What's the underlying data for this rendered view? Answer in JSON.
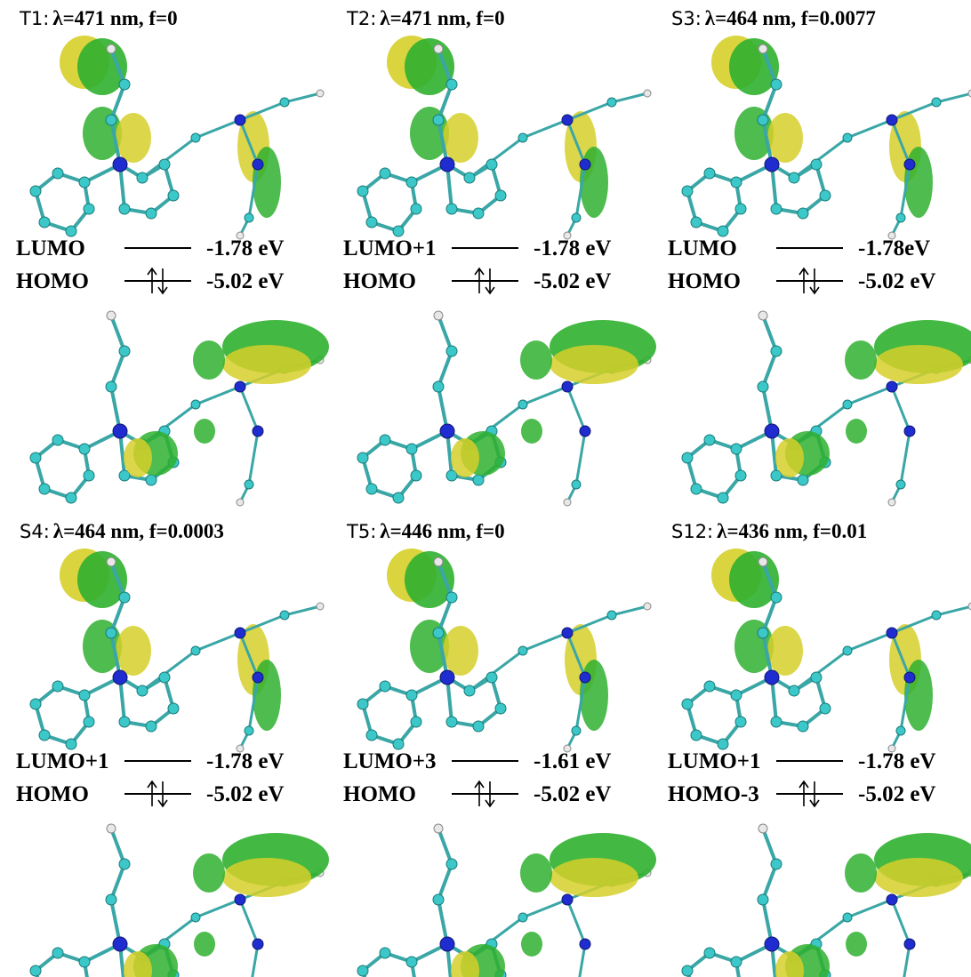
{
  "panels": [
    {
      "state": "T1:",
      "title": "λ=471 nm, f=0",
      "upper": {
        "orbital": "LUMO",
        "energy": "-1.78 eV"
      },
      "lower": {
        "orbital": "HOMO",
        "energy": "-5.02 eV"
      }
    },
    {
      "state": "T2:",
      "title": "λ=471 nm, f=0",
      "upper": {
        "orbital": "LUMO+1",
        "energy": "-1.78 eV"
      },
      "lower": {
        "orbital": "HOMO",
        "energy": "-5.02  eV"
      }
    },
    {
      "state": "S3:",
      "title": "λ=464 nm, f=0.0077",
      "upper": {
        "orbital": "LUMO",
        "energy": "-1.78eV"
      },
      "lower": {
        "orbital": "HOMO",
        "energy": "-5.02  eV"
      }
    },
    {
      "state": "S4:",
      "title": "λ=464 nm, f=0.0003",
      "upper": {
        "orbital": "LUMO+1",
        "energy": "-1.78 eV"
      },
      "lower": {
        "orbital": "HOMO",
        "energy": "-5.02  eV"
      }
    },
    {
      "state": "T5:",
      "title": "λ=446 nm, f=0",
      "upper": {
        "orbital": "LUMO+3",
        "energy": "-1.61 eV"
      },
      "lower": {
        "orbital": "HOMO",
        "energy": "-5.02  eV"
      }
    },
    {
      "state": "S12:",
      "title": "λ=436 nm, f=0.01",
      "upper": {
        "orbital": "LUMO+1",
        "energy": "-1.78 eV"
      },
      "lower": {
        "orbital": "HOMO-3",
        "energy": "-5.02  eV"
      }
    }
  ]
}
